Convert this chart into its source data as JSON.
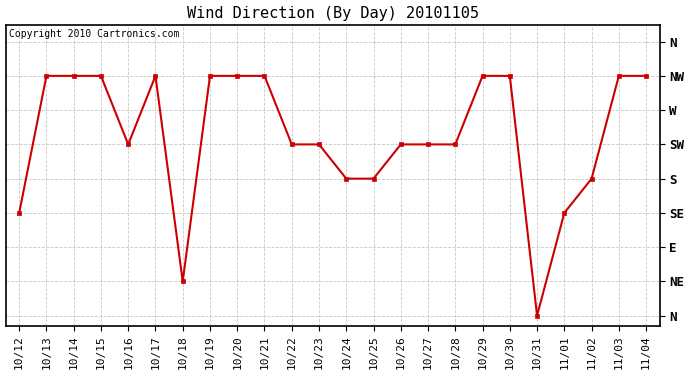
{
  "title": "Wind Direction (By Day) 20101105",
  "copyright": "Copyright 2010 Cartronics.com",
  "x_labels": [
    "10/12",
    "10/13",
    "10/14",
    "10/15",
    "10/16",
    "10/17",
    "10/18",
    "10/19",
    "10/20",
    "10/21",
    "10/22",
    "10/23",
    "10/24",
    "10/25",
    "10/26",
    "10/27",
    "10/28",
    "10/29",
    "10/30",
    "10/31",
    "11/01",
    "11/02",
    "11/03",
    "11/04"
  ],
  "y_ticks": [
    8,
    7,
    6,
    5,
    4,
    3,
    2,
    1,
    0
  ],
  "y_labels": [
    "N",
    "NW",
    "W",
    "SW",
    "S",
    "SE",
    "E",
    "NE",
    "N"
  ],
  "data_values": [
    3,
    7,
    7,
    7,
    5,
    7,
    1,
    7,
    7,
    7,
    5,
    5,
    4,
    4,
    5,
    5,
    5,
    7,
    7,
    0,
    3,
    4,
    7,
    7
  ],
  "line_color": "#cc0000",
  "marker": "s",
  "marker_size": 3,
  "bg_color": "#ffffff",
  "grid_color": "#bbbbbb",
  "title_fontsize": 11,
  "tick_fontsize": 8,
  "copyright_fontsize": 7
}
